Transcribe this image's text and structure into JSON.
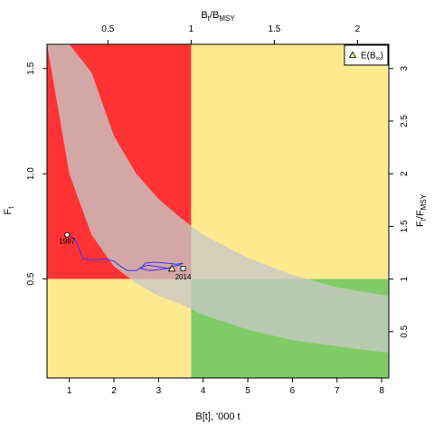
{
  "chart_data": {
    "type": "line",
    "title": "",
    "xlabel": "B[t], '000 t",
    "ylabel": "F",
    "ylabel_sub": "t",
    "top_axis_label": {
      "main": "B",
      "sub1": "t",
      "slash": "/B",
      "sub2": "MSY"
    },
    "right_axis_label": {
      "main": "F",
      "sub1": "t",
      "slash": "/F",
      "sub2": "MSY"
    },
    "xlim": [
      0.5,
      8.16
    ],
    "ylim": [
      0.03,
      1.615
    ],
    "x_ticks": [
      1,
      2,
      3,
      4,
      5,
      6,
      7,
      8
    ],
    "y_ticks": [
      0.5,
      1.0,
      1.5
    ],
    "y_tick_labels": [
      "0.5",
      "1.0",
      "1.5"
    ],
    "top_ticks": [
      0.5,
      1,
      1.5,
      2
    ],
    "top_tick_labels": [
      "0.5",
      "1",
      "1.5",
      "2"
    ],
    "right_ticks": [
      0.5,
      1,
      1.5,
      2,
      2.5,
      3
    ],
    "right_tick_labels": [
      "0.5",
      "1",
      "1.5",
      "2",
      "2.5",
      "3"
    ],
    "bmsy": 3.73,
    "fmsy": 0.5,
    "zone_colors": {
      "red": "#ff3333",
      "yellow": "#ffe98f",
      "green": "#80cc66",
      "band": "#c8c8c8",
      "trajectory": "#3333ff"
    },
    "band": {
      "description": "shaded confidence band of F versus B",
      "x": [
        0.5,
        1.0,
        1.5,
        2.0,
        2.5,
        3.0,
        3.5,
        4.0,
        5.0,
        6.0,
        7.0,
        8.16
      ],
      "lower": [
        1.615,
        1.0,
        0.71,
        0.56,
        0.48,
        0.42,
        0.38,
        0.33,
        0.26,
        0.21,
        0.18,
        0.15
      ],
      "upper": [
        1.615,
        1.615,
        1.48,
        1.18,
        1.0,
        0.88,
        0.79,
        0.71,
        0.6,
        0.52,
        0.46,
        0.42
      ]
    },
    "series": [
      {
        "x": [
          0.95,
          1.05,
          1.15,
          1.3,
          1.45,
          1.6,
          1.8,
          2.0,
          2.15,
          2.3,
          2.5,
          2.6,
          2.75,
          2.95,
          3.1,
          3.2,
          3.3,
          3.45,
          3.55,
          3.4,
          3.2,
          2.9,
          2.7,
          2.6,
          2.8,
          3.0,
          3.2,
          3.3
        ],
        "y": [
          0.71,
          0.7,
          0.68,
          0.6,
          0.59,
          0.59,
          0.595,
          0.585,
          0.56,
          0.54,
          0.54,
          0.555,
          0.565,
          0.56,
          0.555,
          0.55,
          0.56,
          0.565,
          0.575,
          0.57,
          0.575,
          0.58,
          0.575,
          0.55,
          0.54,
          0.545,
          0.55,
          0.55
        ]
      }
    ],
    "points": [
      {
        "label": "1997",
        "x": 0.95,
        "y": 0.71,
        "marker": "circle"
      },
      {
        "label": "2014",
        "x": 3.55,
        "y": 0.55,
        "marker": "square"
      }
    ],
    "expected_point": {
      "x": 3.3,
      "y": 0.55,
      "marker": "triangle",
      "color": "#ffe98f"
    },
    "legend": {
      "position": "top-right",
      "label": "E(B",
      "label_sub": "∞",
      "label_end": ")"
    }
  }
}
